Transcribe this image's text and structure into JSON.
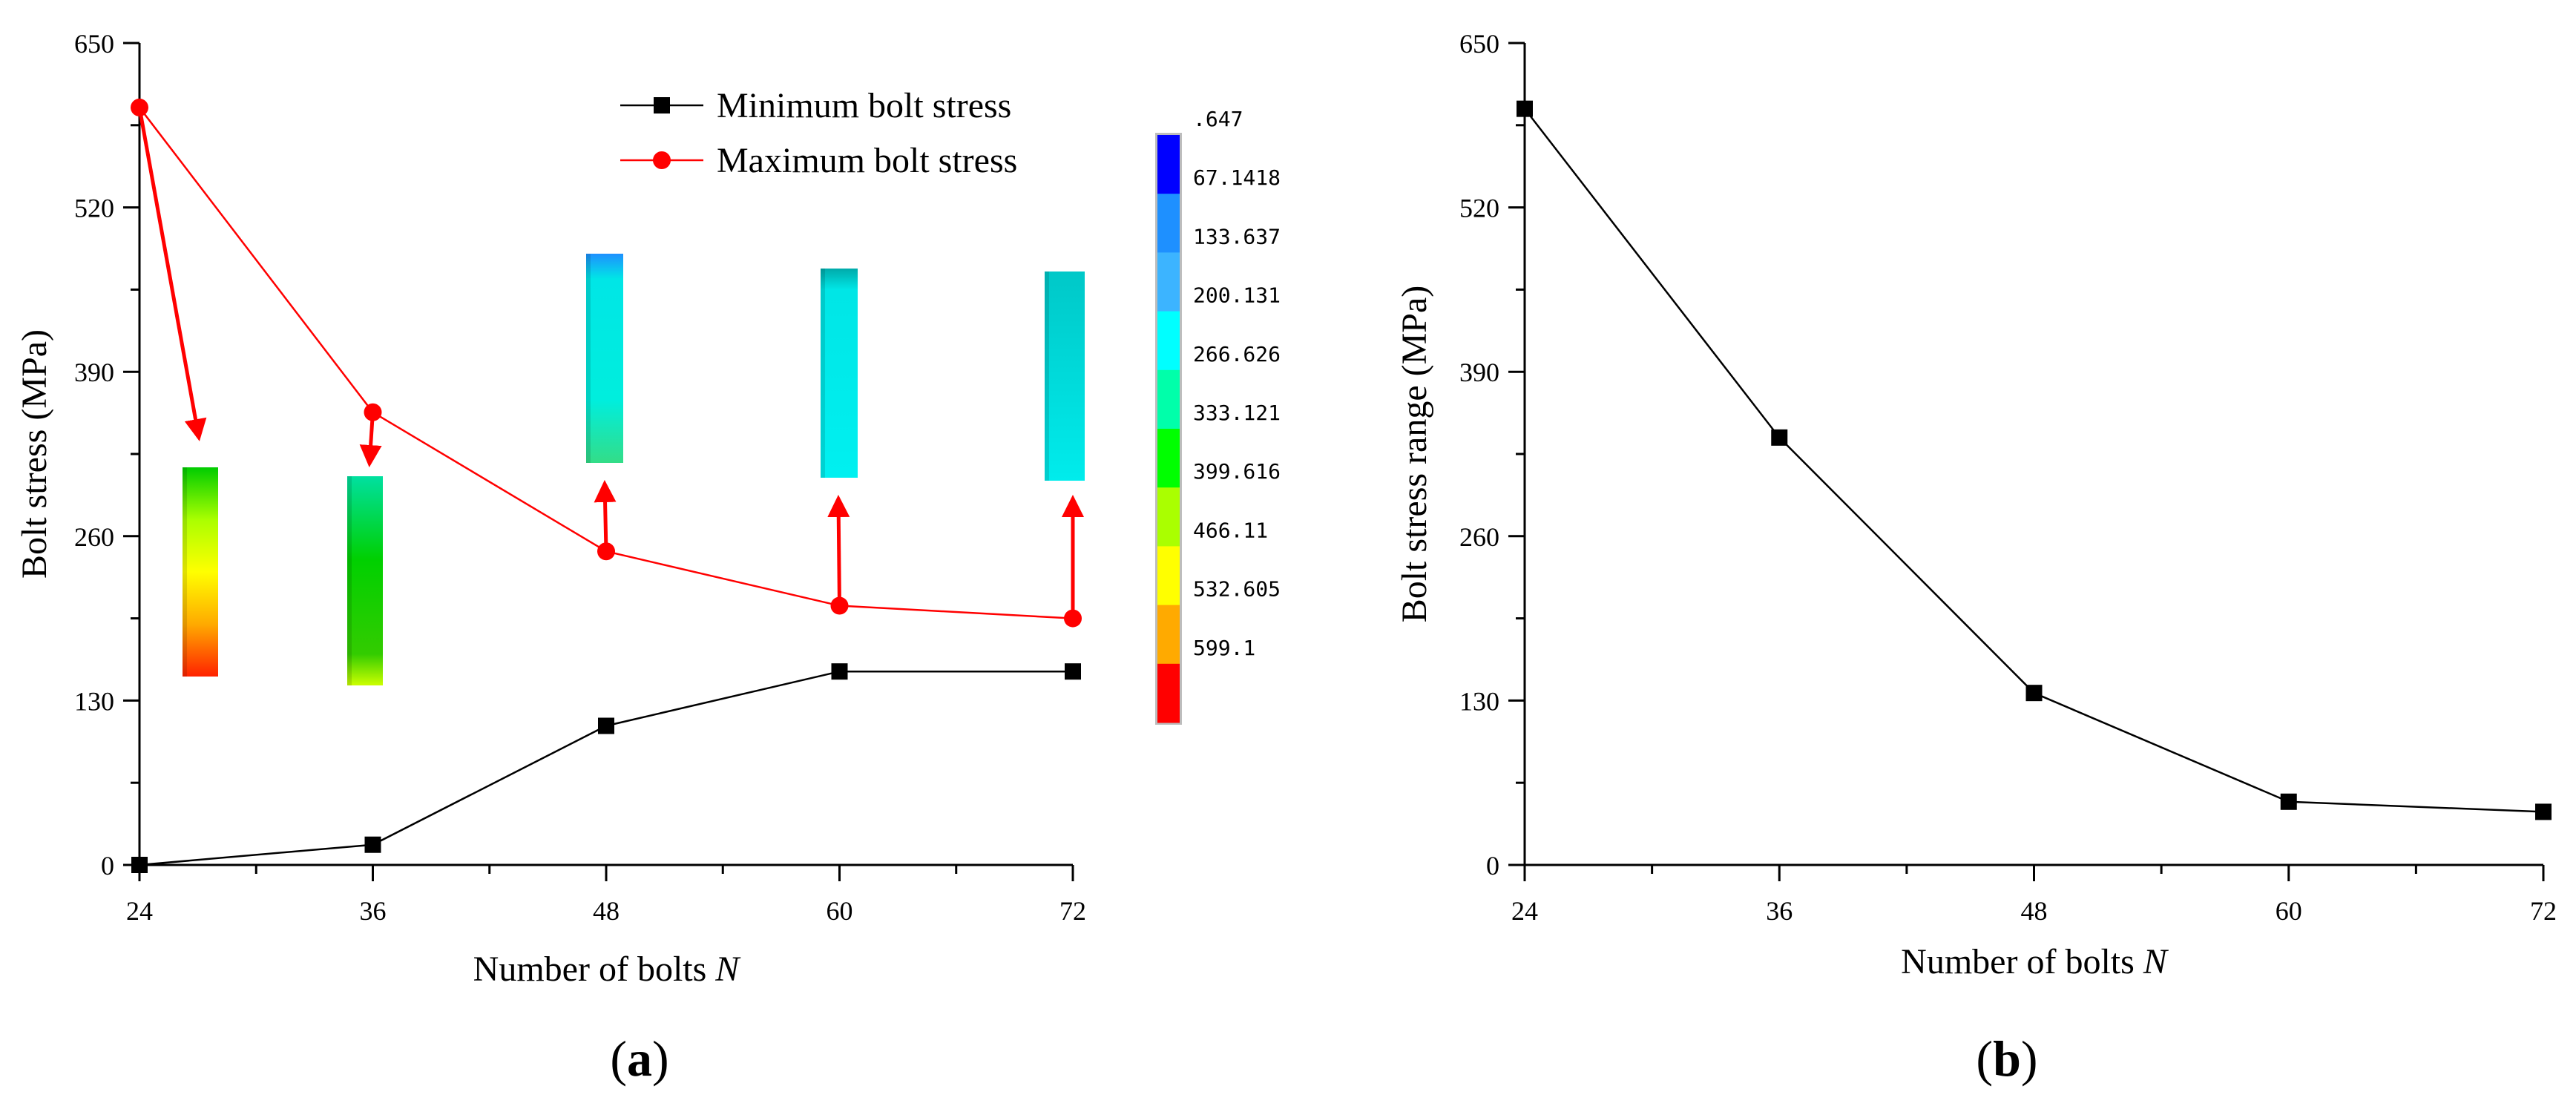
{
  "chart_data": [
    {
      "type": "line",
      "panel_label": "a",
      "xlabel": "Number of bolts",
      "xlabel_symbol": "N",
      "ylabel": "Bolt stress (MPa)",
      "xticks": [
        24,
        36,
        48,
        60,
        72
      ],
      "yticks": [
        0,
        130,
        260,
        390,
        520,
        650
      ],
      "xlim": [
        24,
        72
      ],
      "ylim": [
        0,
        650
      ],
      "grid": false,
      "legend_position": "top-center",
      "series": [
        {
          "name": "Minimum bolt stress",
          "marker": "square",
          "color": "#000000",
          "x": [
            24,
            36,
            48,
            60,
            72
          ],
          "y": [
            0,
            16,
            110,
            153,
            153
          ]
        },
        {
          "name": "Maximum bolt stress",
          "marker": "circle",
          "color": "#ff0000",
          "x": [
            24,
            36,
            48,
            60,
            72
          ],
          "y": [
            599,
            358,
            248,
            205,
            195
          ]
        }
      ],
      "colorbar": {
        "labels": [
          ".647",
          "67.1418",
          "133.637",
          "200.131",
          "266.626",
          "333.121",
          "399.616",
          "466.11",
          "532.605",
          "599.1"
        ],
        "colors": [
          "#0000ff",
          "#1e90ff",
          "#3cb4ff",
          "#00ffff",
          "#00ffaa",
          "#00ff00",
          "#aaff00",
          "#ffff00",
          "#ffaa00",
          "#ff0000"
        ]
      }
    },
    {
      "type": "line",
      "panel_label": "b",
      "xlabel": "Number of bolts",
      "xlabel_symbol": "N",
      "ylabel": "Bolt stress range (MPa)",
      "xticks": [
        24,
        36,
        48,
        60,
        72
      ],
      "yticks": [
        0,
        130,
        260,
        390,
        520,
        650
      ],
      "xlim": [
        24,
        72
      ],
      "ylim": [
        0,
        650
      ],
      "grid": false,
      "series": [
        {
          "marker": "square",
          "color": "#000000",
          "x": [
            24,
            36,
            48,
            60,
            72
          ],
          "y": [
            598,
            338,
            136,
            50,
            42
          ]
        }
      ]
    }
  ]
}
